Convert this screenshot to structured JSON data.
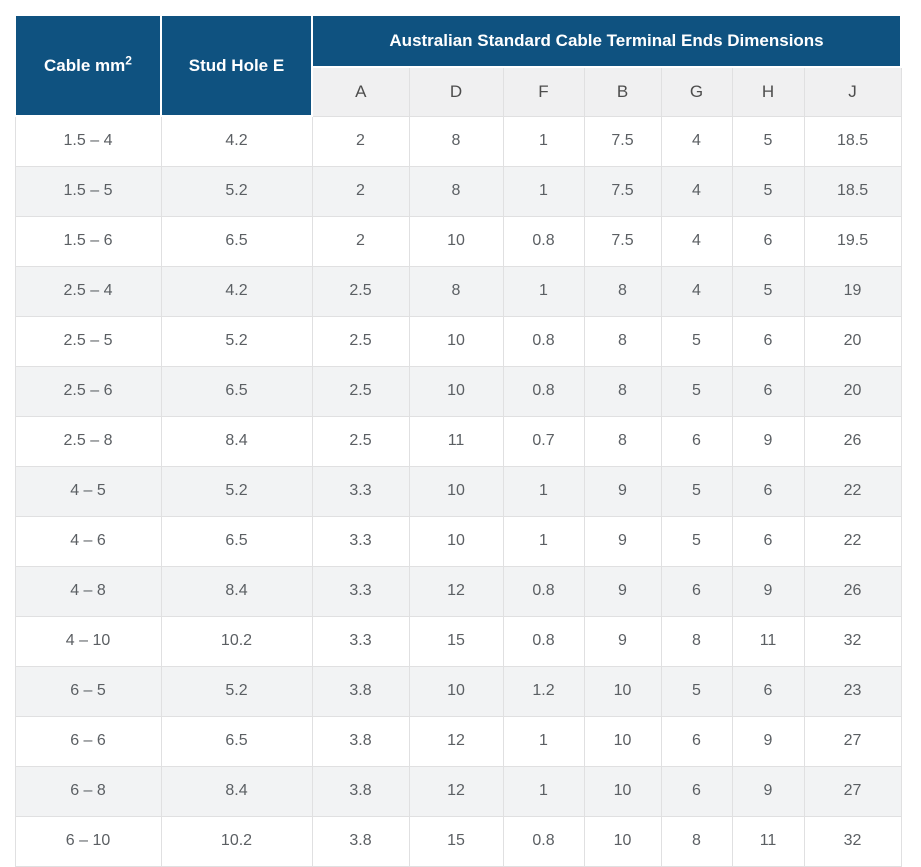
{
  "table": {
    "col1_header": "Cable mm",
    "col1_header_sup": "2",
    "col2_header": "Stud Hole E",
    "group_header": "Australian Standard Cable Terminal Ends Dimensions",
    "dim_headers": [
      "A",
      "D",
      "F",
      "B",
      "G",
      "H",
      "J"
    ],
    "rows": [
      {
        "cable": "1.5 – 4",
        "stud": "4.2",
        "dims": [
          "2",
          "8",
          "1",
          "7.5",
          "4",
          "5",
          "18.5"
        ]
      },
      {
        "cable": "1.5 – 5",
        "stud": "5.2",
        "dims": [
          "2",
          "8",
          "1",
          "7.5",
          "4",
          "5",
          "18.5"
        ]
      },
      {
        "cable": "1.5 – 6",
        "stud": "6.5",
        "dims": [
          "2",
          "10",
          "0.8",
          "7.5",
          "4",
          "6",
          "19.5"
        ]
      },
      {
        "cable": "2.5 – 4",
        "stud": "4.2",
        "dims": [
          "2.5",
          "8",
          "1",
          "8",
          "4",
          "5",
          "19"
        ]
      },
      {
        "cable": "2.5 – 5",
        "stud": "5.2",
        "dims": [
          "2.5",
          "10",
          "0.8",
          "8",
          "5",
          "6",
          "20"
        ]
      },
      {
        "cable": "2.5 – 6",
        "stud": "6.5",
        "dims": [
          "2.5",
          "10",
          "0.8",
          "8",
          "5",
          "6",
          "20"
        ]
      },
      {
        "cable": "2.5 – 8",
        "stud": "8.4",
        "dims": [
          "2.5",
          "11",
          "0.7",
          "8",
          "6",
          "9",
          "26"
        ]
      },
      {
        "cable": "4 – 5",
        "stud": "5.2",
        "dims": [
          "3.3",
          "10",
          "1",
          "9",
          "5",
          "6",
          "22"
        ]
      },
      {
        "cable": "4 – 6",
        "stud": "6.5",
        "dims": [
          "3.3",
          "10",
          "1",
          "9",
          "5",
          "6",
          "22"
        ]
      },
      {
        "cable": "4 – 8",
        "stud": "8.4",
        "dims": [
          "3.3",
          "12",
          "0.8",
          "9",
          "6",
          "9",
          "26"
        ]
      },
      {
        "cable": "4 – 10",
        "stud": "10.2",
        "dims": [
          "3.3",
          "15",
          "0.8",
          "9",
          "8",
          "11",
          "32"
        ]
      },
      {
        "cable": "6 – 5",
        "stud": "5.2",
        "dims": [
          "3.8",
          "10",
          "1.2",
          "10",
          "5",
          "6",
          "23"
        ]
      },
      {
        "cable": "6 – 6",
        "stud": "6.5",
        "dims": [
          "3.8",
          "12",
          "1",
          "10",
          "6",
          "9",
          "27"
        ]
      },
      {
        "cable": "6 – 8",
        "stud": "8.4",
        "dims": [
          "3.8",
          "12",
          "1",
          "10",
          "6",
          "9",
          "27"
        ]
      },
      {
        "cable": "6 – 10",
        "stud": "10.2",
        "dims": [
          "3.8",
          "15",
          "0.8",
          "10",
          "8",
          "11",
          "32"
        ]
      }
    ]
  },
  "colors": {
    "header_blue": "#0f5280",
    "header_text": "#ffffff",
    "subheader_bg": "#f0f0f1",
    "stripe_gray": "#f2f3f4",
    "border_gray": "#e0e0e1",
    "data_text": "#5b5f63",
    "page_bg": "#ffffff"
  }
}
